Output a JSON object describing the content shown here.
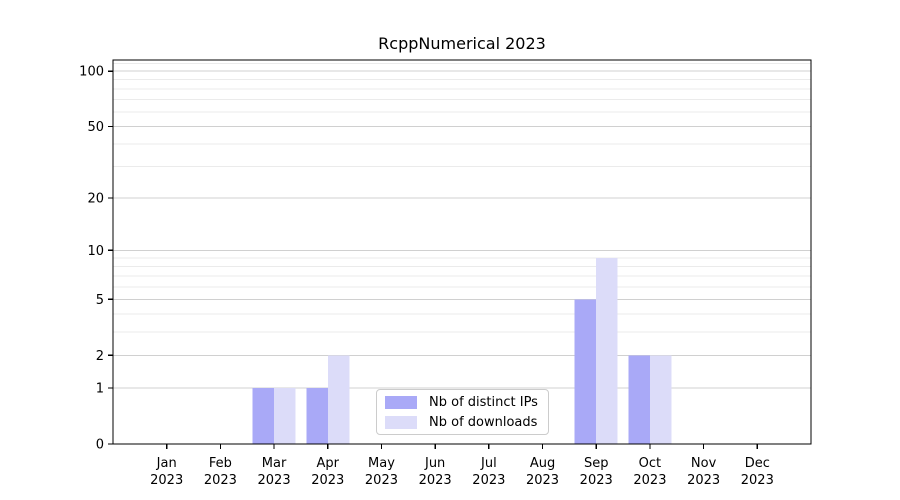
{
  "chart_data": {
    "type": "bar",
    "title": "RcppNumerical 2023",
    "scale": "log1p",
    "x_tick_labels": [
      "Jan 2023",
      "Feb 2023",
      "Mar 2023",
      "Apr 2023",
      "May 2023",
      "Jun 2023",
      "Jul 2023",
      "Aug 2023",
      "Sep 2023",
      "Oct 2023",
      "Nov 2023",
      "Dec 2023"
    ],
    "series": [
      {
        "name": "Nb of distinct IPs",
        "color": "#a9a9f7",
        "values": [
          0,
          0,
          1,
          1,
          0,
          0,
          0,
          0,
          5,
          2,
          0,
          0
        ]
      },
      {
        "name": "Nb of downloads",
        "color": "#dcdcf9",
        "values": [
          0,
          0,
          1,
          2,
          0,
          0,
          0,
          0,
          9,
          2,
          0,
          0
        ]
      }
    ],
    "y_major_ticks": [
      0,
      1,
      2,
      5,
      10,
      20,
      50,
      100
    ],
    "y_minor_gridlines": [
      3,
      4,
      6,
      7,
      8,
      9,
      30,
      40,
      60,
      70,
      80,
      90,
      110
    ],
    "ylim": [
      0,
      115
    ],
    "grid": true,
    "legend_position": "bottom-center",
    "colors": {
      "major_grid": "#d0d0d0",
      "minor_grid": "#ebebeb",
      "axis": "#000000",
      "text": "#000000",
      "background": "#ffffff"
    }
  }
}
